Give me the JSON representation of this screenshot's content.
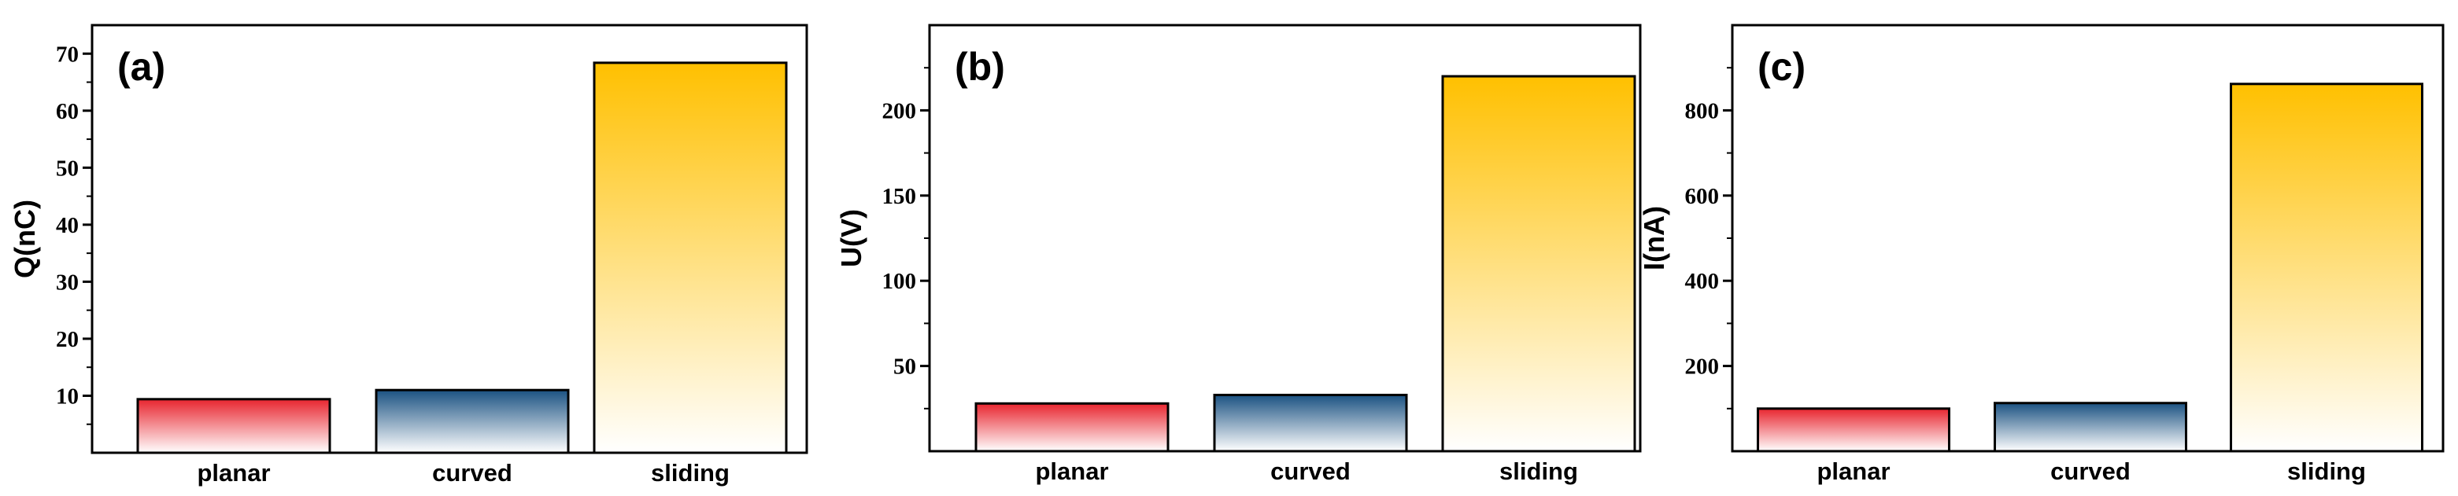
{
  "chart_data": [
    {
      "type": "bar",
      "panel_label": "(a)",
      "ylabel": "Q(nC)",
      "categories": [
        "planar",
        "curved",
        "sliding"
      ],
      "values": [
        9.4,
        11.0,
        68.4
      ],
      "ylim": [
        0,
        75
      ],
      "yticks": [
        10,
        20,
        30,
        40,
        50,
        60,
        70
      ],
      "grid": false,
      "bar_gradients": [
        {
          "top": "#e8252f",
          "bottom": "#ffffff"
        },
        {
          "top": "#1b5282",
          "bottom": "#ffffff"
        },
        {
          "top": "#ffc000",
          "bottom": "#ffffff"
        }
      ]
    },
    {
      "type": "bar",
      "panel_label": "(b)",
      "ylabel": "U(V)",
      "categories": [
        "planar",
        "curved",
        "sliding"
      ],
      "values": [
        28,
        33,
        220
      ],
      "ylim": [
        0,
        250
      ],
      "yticks": [
        50,
        100,
        150,
        200
      ],
      "grid": false,
      "bar_gradients": [
        {
          "top": "#e8252f",
          "bottom": "#ffffff"
        },
        {
          "top": "#1b5282",
          "bottom": "#ffffff"
        },
        {
          "top": "#ffc000",
          "bottom": "#ffffff"
        }
      ]
    },
    {
      "type": "bar",
      "panel_label": "(c)",
      "ylabel": "I(nA)",
      "categories": [
        "planar",
        "curved",
        "sliding"
      ],
      "values": [
        100,
        113,
        862
      ],
      "ylim": [
        0,
        1000
      ],
      "yticks": [
        200,
        400,
        600,
        800
      ],
      "grid": false,
      "bar_gradients": [
        {
          "top": "#e8252f",
          "bottom": "#ffffff"
        },
        {
          "top": "#1b5282",
          "bottom": "#ffffff"
        },
        {
          "top": "#ffc000",
          "bottom": "#ffffff"
        }
      ]
    }
  ]
}
